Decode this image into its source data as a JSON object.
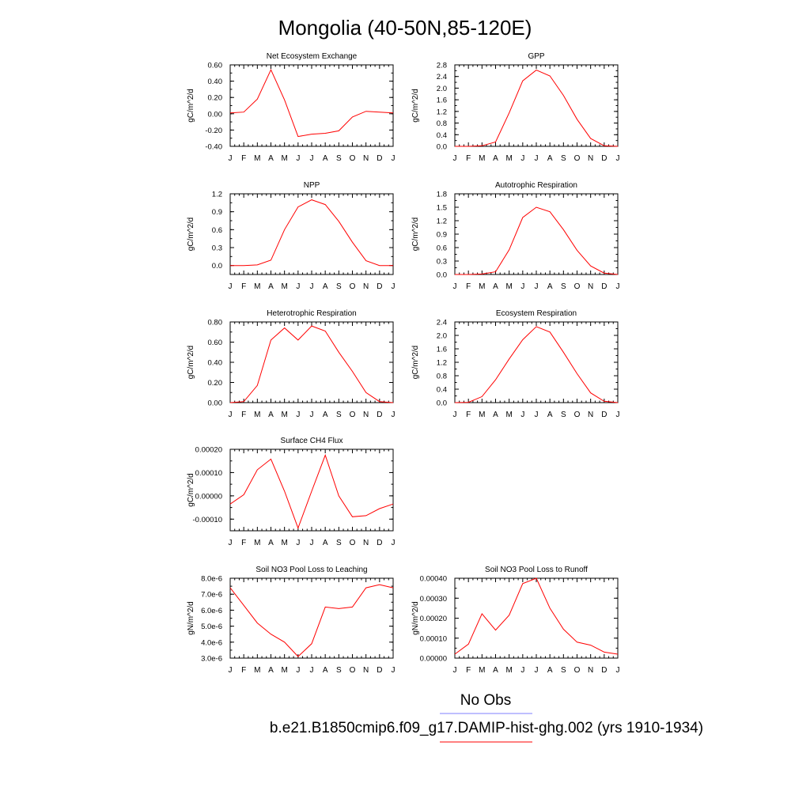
{
  "page": {
    "title": "Mongolia (40-50N,85-120E)",
    "legend": {
      "obs_label": "No Obs",
      "obs_color": "#7f7fff",
      "case_label": "b.e21.B1850cmip6.f09_g17.DAMIP-hist-ghg.002 (yrs 1910-1934)",
      "case_color": "#ff0000"
    }
  },
  "chart_data": [
    {
      "type": "line",
      "title": "Net Ecosystem Exchange",
      "ylabel": "gC/m^2/d",
      "x": [
        "J",
        "F",
        "M",
        "A",
        "M",
        "J",
        "J",
        "A",
        "S",
        "O",
        "N",
        "D",
        "J"
      ],
      "yticks": [
        "-0.40",
        "-0.20",
        "0.00",
        "0.20",
        "0.40",
        "0.60"
      ],
      "ylim": [
        -0.4,
        0.6
      ],
      "series": [
        {
          "color": "#ff0000",
          "values": [
            0.01,
            0.02,
            0.18,
            0.54,
            0.17,
            -0.28,
            -0.25,
            -0.24,
            -0.21,
            -0.04,
            0.03,
            0.02,
            0.01
          ]
        }
      ]
    },
    {
      "type": "line",
      "title": "GPP",
      "ylabel": "gC/m^2/d",
      "x": [
        "J",
        "F",
        "M",
        "A",
        "M",
        "J",
        "J",
        "A",
        "S",
        "O",
        "N",
        "D",
        "J"
      ],
      "yticks": [
        "0.0",
        "0.4",
        "0.8",
        "1.2",
        "1.6",
        "2.0",
        "2.4",
        "2.8"
      ],
      "ylim": [
        0,
        2.8
      ],
      "series": [
        {
          "color": "#ff0000",
          "values": [
            0.0,
            0.0,
            0.02,
            0.15,
            1.15,
            2.25,
            2.62,
            2.42,
            1.75,
            0.93,
            0.27,
            0.02,
            0.0
          ]
        }
      ]
    },
    {
      "type": "line",
      "title": "NPP",
      "ylabel": "gC/m^2/d",
      "x": [
        "J",
        "F",
        "M",
        "A",
        "M",
        "J",
        "J",
        "A",
        "S",
        "O",
        "N",
        "D",
        "J"
      ],
      "yticks": [
        "0.0",
        "0.3",
        "0.6",
        "0.9",
        "1.2"
      ],
      "ylim": [
        -0.15,
        1.2
      ],
      "series": [
        {
          "color": "#ff0000",
          "values": [
            0.0,
            0.0,
            0.01,
            0.09,
            0.6,
            0.98,
            1.1,
            1.02,
            0.74,
            0.39,
            0.08,
            0.0,
            0.0
          ]
        }
      ]
    },
    {
      "type": "line",
      "title": "Autotrophic Respiration",
      "ylabel": "gC/m^2/d",
      "x": [
        "J",
        "F",
        "M",
        "A",
        "M",
        "J",
        "J",
        "A",
        "S",
        "O",
        "N",
        "D",
        "J"
      ],
      "yticks": [
        "0.0",
        "0.3",
        "0.6",
        "0.9",
        "1.2",
        "1.5",
        "1.8"
      ],
      "ylim": [
        0,
        1.8
      ],
      "series": [
        {
          "color": "#ff0000",
          "values": [
            0.0,
            0.0,
            0.01,
            0.06,
            0.55,
            1.27,
            1.5,
            1.4,
            1.0,
            0.54,
            0.19,
            0.03,
            0.0
          ]
        }
      ]
    },
    {
      "type": "line",
      "title": "Heterotrophic Respiration",
      "ylabel": "gC/m^2/d",
      "x": [
        "J",
        "F",
        "M",
        "A",
        "M",
        "J",
        "J",
        "A",
        "S",
        "O",
        "N",
        "D",
        "J"
      ],
      "yticks": [
        "0.00",
        "0.20",
        "0.40",
        "0.60",
        "0.80"
      ],
      "ylim": [
        0,
        0.8
      ],
      "series": [
        {
          "color": "#ff0000",
          "values": [
            0.0,
            0.01,
            0.17,
            0.62,
            0.74,
            0.62,
            0.76,
            0.71,
            0.5,
            0.31,
            0.1,
            0.01,
            0.0
          ]
        }
      ]
    },
    {
      "type": "line",
      "title": "Ecosystem Respiration",
      "ylabel": "gC/m^2/d",
      "x": [
        "J",
        "F",
        "M",
        "A",
        "M",
        "J",
        "J",
        "A",
        "S",
        "O",
        "N",
        "D",
        "J"
      ],
      "yticks": [
        "0.0",
        "0.4",
        "0.8",
        "1.2",
        "1.6",
        "2.0",
        "2.4"
      ],
      "ylim": [
        0,
        2.4
      ],
      "series": [
        {
          "color": "#ff0000",
          "values": [
            0.0,
            0.01,
            0.18,
            0.68,
            1.3,
            1.87,
            2.26,
            2.1,
            1.5,
            0.86,
            0.29,
            0.04,
            0.0
          ]
        }
      ]
    },
    {
      "type": "line",
      "title": "Surface CH4 Flux",
      "ylabel": "gC/m^2/d",
      "x": [
        "J",
        "F",
        "M",
        "A",
        "M",
        "J",
        "J",
        "A",
        "S",
        "O",
        "N",
        "D",
        "J"
      ],
      "yticks": [
        "-0.00010",
        "0.00000",
        "0.00010",
        "0.00020"
      ],
      "ylim": [
        -0.00015,
        0.0002
      ],
      "series": [
        {
          "color": "#ff0000",
          "values": [
            -3.5e-05,
            5e-06,
            0.000112,
            0.000158,
            2e-05,
            -0.000138,
            2e-05,
            0.000175,
            0.0,
            -9e-05,
            -8.5e-05,
            -5.5e-05,
            -3.5e-05
          ]
        }
      ]
    },
    {
      "type": "line",
      "title": "Soil NO3 Pool Loss to Leaching",
      "ylabel": "gN/m^2/d",
      "x": [
        "J",
        "F",
        "M",
        "A",
        "M",
        "J",
        "J",
        "A",
        "S",
        "O",
        "N",
        "D",
        "J"
      ],
      "yticks": [
        "3.0e-6",
        "4.0e-6",
        "5.0e-6",
        "6.0e-6",
        "7.0e-6",
        "8.0e-6"
      ],
      "ylim": [
        3e-06,
        8e-06
      ],
      "series": [
        {
          "color": "#ff0000",
          "values": [
            7.4e-06,
            6.3e-06,
            5.2e-06,
            4.5e-06,
            4e-06,
            3.1e-06,
            3.9e-06,
            6.2e-06,
            6.1e-06,
            6.2e-06,
            7.4e-06,
            7.6e-06,
            7.4e-06
          ]
        }
      ]
    },
    {
      "type": "line",
      "title": "Soil NO3 Pool Loss to Runoff",
      "ylabel": "gN/m^2/d",
      "x": [
        "J",
        "F",
        "M",
        "A",
        "M",
        "J",
        "J",
        "A",
        "S",
        "O",
        "N",
        "D",
        "J"
      ],
      "yticks": [
        "0.00000",
        "0.00010",
        "0.00020",
        "0.00030",
        "0.00040"
      ],
      "ylim": [
        0,
        0.0004
      ],
      "series": [
        {
          "color": "#ff0000",
          "values": [
            2e-05,
            7e-05,
            0.000222,
            0.00014,
            0.000215,
            0.000373,
            0.0004,
            0.00025,
            0.000145,
            8e-05,
            6.5e-05,
            3e-05,
            2e-05
          ]
        }
      ]
    }
  ]
}
